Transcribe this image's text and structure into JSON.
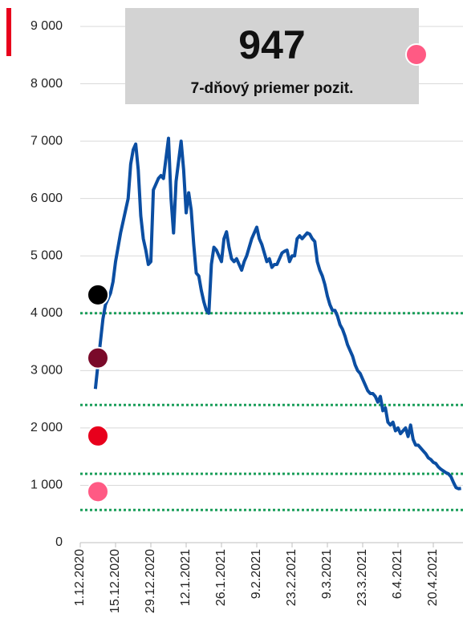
{
  "chart_data": {
    "type": "line",
    "highlight": {
      "value": 947,
      "label": "7-dňový priemer pozit.",
      "color": "#ff5a84"
    },
    "x": [
      "7.12.2020",
      "8.12.2020",
      "9.12.2020",
      "10.12.2020",
      "11.12.2020",
      "12.12.2020",
      "13.12.2020",
      "14.12.2020",
      "15.12.2020",
      "16.12.2020",
      "17.12.2020",
      "18.12.2020",
      "19.12.2020",
      "20.12.2020",
      "21.12.2020",
      "22.12.2020",
      "23.12.2020",
      "24.12.2020",
      "25.12.2020",
      "26.12.2020",
      "27.12.2020",
      "28.12.2020",
      "29.12.2020",
      "30.12.2020",
      "31.12.2020",
      "1.1.2021",
      "2.1.2021",
      "3.1.2021",
      "4.1.2021",
      "5.1.2021",
      "6.1.2021",
      "7.1.2021",
      "8.1.2021",
      "9.1.2021",
      "10.1.2021",
      "11.1.2021",
      "12.1.2021",
      "13.1.2021",
      "14.1.2021",
      "15.1.2021",
      "16.1.2021",
      "17.1.2021",
      "18.1.2021",
      "19.1.2021",
      "20.1.2021",
      "21.1.2021",
      "22.1.2021",
      "23.1.2021",
      "24.1.2021",
      "25.1.2021",
      "26.1.2021",
      "27.1.2021",
      "28.1.2021",
      "29.1.2021",
      "30.1.2021",
      "31.1.2021",
      "1.2.2021",
      "2.2.2021",
      "3.2.2021",
      "4.2.2021",
      "5.2.2021",
      "6.2.2021",
      "7.2.2021",
      "8.2.2021",
      "9.2.2021",
      "10.2.2021",
      "11.2.2021",
      "12.2.2021",
      "13.2.2021",
      "14.2.2021",
      "15.2.2021",
      "16.2.2021",
      "17.2.2021",
      "18.2.2021",
      "19.2.2021",
      "20.2.2021",
      "21.2.2021",
      "22.2.2021",
      "23.2.2021",
      "24.2.2021",
      "25.2.2021",
      "26.2.2021",
      "27.2.2021",
      "28.2.2021",
      "1.3.2021",
      "2.3.2021",
      "3.3.2021",
      "4.3.2021",
      "5.3.2021",
      "6.3.2021",
      "7.3.2021",
      "8.3.2021",
      "9.3.2021",
      "10.3.2021",
      "11.3.2021",
      "12.3.2021",
      "13.3.2021",
      "14.3.2021",
      "15.3.2021",
      "16.3.2021",
      "17.3.2021",
      "18.3.2021",
      "19.3.2021",
      "20.3.2021",
      "21.3.2021",
      "22.3.2021",
      "23.3.2021",
      "24.3.2021",
      "25.3.2021",
      "26.3.2021",
      "27.3.2021",
      "28.3.2021",
      "29.3.2021",
      "30.3.2021",
      "31.3.2021",
      "1.4.2021",
      "2.4.2021",
      "3.4.2021",
      "4.4.2021",
      "5.4.2021",
      "6.4.2021",
      "7.4.2021",
      "8.4.2021",
      "9.4.2021",
      "10.4.2021",
      "11.4.2021",
      "12.4.2021",
      "13.4.2021",
      "14.4.2021",
      "15.4.2021",
      "16.4.2021",
      "17.4.2021",
      "18.4.2021",
      "19.4.2021",
      "20.4.2021",
      "21.4.2021",
      "22.4.2021",
      "23.4.2021",
      "24.4.2021",
      "25.4.2021",
      "26.4.2021",
      "27.4.2021",
      "28.4.2021",
      "29.4.2021",
      "30.4.2021",
      "1.5.2021"
    ],
    "values": [
      2680,
      3100,
      3500,
      3900,
      4150,
      4250,
      4350,
      4550,
      4900,
      5150,
      5400,
      5600,
      5800,
      6000,
      6600,
      6850,
      6950,
      6500,
      5700,
      5300,
      5100,
      4850,
      4900,
      6150,
      6250,
      6350,
      6400,
      6350,
      6700,
      7050,
      6000,
      5400,
      6300,
      6650,
      7000,
      6500,
      5750,
      6100,
      5800,
      5200,
      4700,
      4650,
      4400,
      4200,
      4050,
      4000,
      4850,
      5150,
      5100,
      5000,
      4900,
      5300,
      5420,
      5150,
      4950,
      4900,
      4950,
      4850,
      4750,
      4900,
      5000,
      5150,
      5300,
      5400,
      5500,
      5300,
      5200,
      5050,
      4900,
      4950,
      4800,
      4850,
      4850,
      4950,
      5050,
      5080,
      5100,
      4900,
      5000,
      5000,
      5300,
      5350,
      5300,
      5350,
      5400,
      5380,
      5300,
      5250,
      4900,
      4750,
      4650,
      4500,
      4300,
      4150,
      4050,
      4050,
      3950,
      3800,
      3720,
      3600,
      3450,
      3350,
      3250,
      3100,
      3000,
      2950,
      2850,
      2750,
      2650,
      2600,
      2600,
      2550,
      2450,
      2550,
      2300,
      2350,
      2100,
      2050,
      2100,
      1950,
      2000,
      1900,
      1950,
      2000,
      1850,
      2050,
      1800,
      1700,
      1700,
      1650,
      1600,
      1550,
      1480,
      1450,
      1400,
      1380,
      1320,
      1280,
      1250,
      1220,
      1200,
      1150,
      1050,
      960,
      940,
      947
    ],
    "color": "#0b4ea2",
    "xlim": [
      "1.12.2020",
      "2.5.2021"
    ],
    "xticks": [
      "1.12.2020",
      "15.12.2020",
      "29.12.2020",
      "12.1.2021",
      "26.1.2021",
      "9.2.2021",
      "23.2.2021",
      "9.3.2021",
      "23.3.2021",
      "6.4.2021",
      "20.4.2021"
    ],
    "ylim": [
      0,
      9000
    ],
    "yticks": [
      0,
      {
        "value": 1000,
        "label": "1 000"
      },
      {
        "value": 2000,
        "label": "2 000"
      },
      {
        "value": 3000,
        "label": "3 000"
      },
      {
        "value": 4000,
        "label": "4 000"
      },
      {
        "value": 5000,
        "label": "5 000"
      },
      {
        "value": 6000,
        "label": "6 000"
      },
      {
        "value": 7000,
        "label": "7 000"
      },
      {
        "value": 8000,
        "label": "8 000"
      },
      {
        "value": 9000,
        "label": "9 000"
      }
    ],
    "grid": true,
    "reference_lines": {
      "color": "#1a9e5a",
      "values": [
        4000,
        2400,
        1200,
        570
      ]
    },
    "markers": [
      {
        "color": "#000000",
        "value": 4320
      },
      {
        "color": "#7a0a2a",
        "value": 3220
      },
      {
        "color": "#e8001c",
        "value": 1860
      },
      {
        "color": "#ff5a84",
        "value": 890
      }
    ]
  }
}
